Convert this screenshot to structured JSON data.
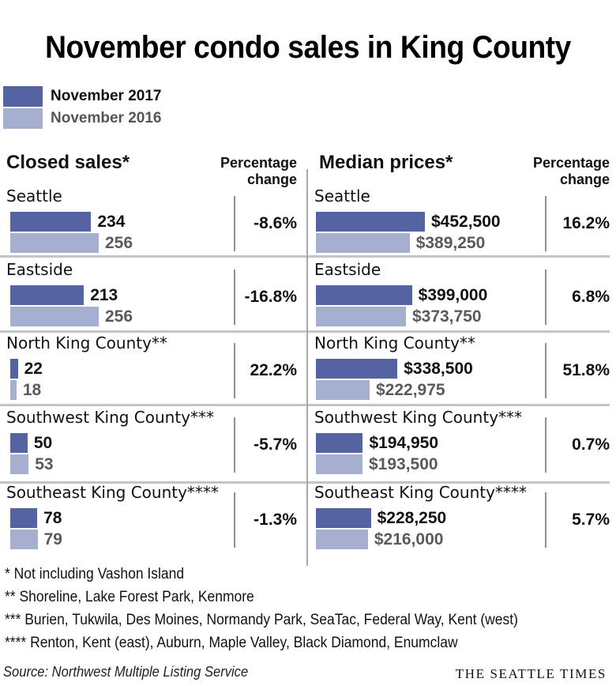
{
  "title": "November condo sales in King County",
  "colors": {
    "nov_2017": "#5464a3",
    "nov_2016": "#a4afd0",
    "divider": "#a8a8a8"
  },
  "legend": [
    {
      "label": "November 2017",
      "color_key": "nov_2017"
    },
    {
      "label": "November 2016",
      "color_key": "nov_2016"
    }
  ],
  "pct_header": "Percentage change",
  "pct_header_lines": [
    "Percentage",
    "change"
  ],
  "footnotes": [
    "* Not including Vashon Island",
    "**  Shoreline, Lake Forest Park, Kenmore",
    "*** Burien, Tukwila, Des Moines, Normandy Park, SeaTac, Federal Way, Kent (west)",
    "**** Renton, Kent (east), Auburn, Maple Valley, Black Diamond, Enumclaw"
  ],
  "source": "Source: Northwest Multiple Listing Service",
  "brand": "THE SEATTLE TIMES",
  "chart_data": [
    {
      "type": "bar",
      "orientation": "horizontal",
      "title": "Closed sales*",
      "categories": [
        "Seattle",
        "Eastside",
        "North King County**",
        "Southwest King County***",
        "Southeast King County****"
      ],
      "series": [
        {
          "name": "November 2017",
          "values": [
            234,
            213,
            22,
            50,
            78
          ],
          "labels": [
            "234",
            "213",
            "22",
            "50",
            "78"
          ]
        },
        {
          "name": "November 2016",
          "values": [
            256,
            256,
            18,
            53,
            79
          ],
          "labels": [
            "256",
            "256",
            "18",
            "53",
            "79"
          ]
        }
      ],
      "percentage_change": [
        "-8.6%",
        "-16.8%",
        "22.2%",
        "-5.7%",
        "-1.3%"
      ],
      "xlim": [
        0,
        256
      ],
      "grid": false,
      "legend_placement": "top-left"
    },
    {
      "type": "bar",
      "orientation": "horizontal",
      "title": "Median prices*",
      "categories": [
        "Seattle",
        "Eastside",
        "North King County**",
        "Southwest King County***",
        "Southeast King County****"
      ],
      "series": [
        {
          "name": "November 2017",
          "values": [
            452500,
            399000,
            338500,
            194950,
            228250
          ],
          "labels": [
            "$452,500",
            "$399,000",
            "$338,500",
            "$194,950",
            "$228,250"
          ]
        },
        {
          "name": "November 2016",
          "values": [
            389250,
            373750,
            222975,
            193500,
            216000
          ],
          "labels": [
            "$389,250",
            "$373,750",
            "$222,975",
            "$193,500",
            "$216,000"
          ]
        }
      ],
      "percentage_change": [
        "16.2%",
        "6.8%",
        "51.8%",
        "0.7%",
        "5.7%"
      ],
      "xlim": [
        0,
        452500
      ],
      "grid": false,
      "legend_placement": "top-left"
    }
  ]
}
